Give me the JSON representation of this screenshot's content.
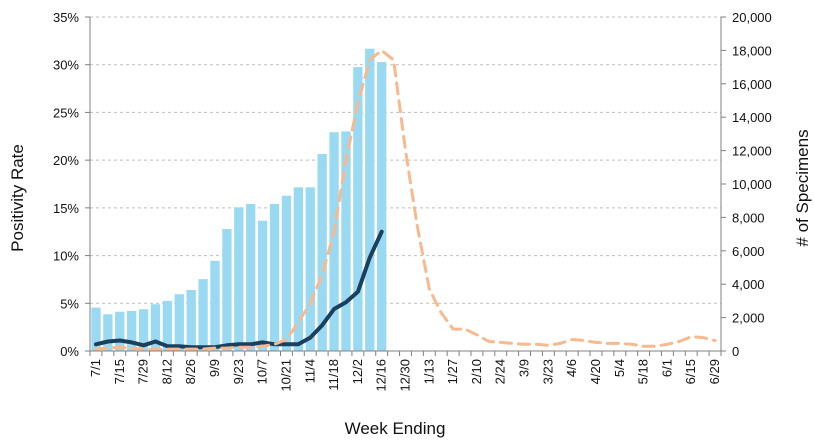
{
  "chart_data": {
    "type": "bar+line",
    "xlabel": "Week Ending",
    "ylabel_left": "Positivity Rate",
    "ylabel_right": "# of Specimens",
    "ylim_left": [
      0,
      35
    ],
    "ylim_right": [
      0,
      20000
    ],
    "yticks_left": [
      "0%",
      "5%",
      "10%",
      "15%",
      "20%",
      "25%",
      "30%",
      "35%"
    ],
    "yticks_right": [
      "0",
      "2,000",
      "4,000",
      "6,000",
      "8,000",
      "10,000",
      "12,000",
      "14,000",
      "16,000",
      "18,000",
      "20,000"
    ],
    "grid": "horizontal dashed",
    "colors": {
      "bars": "#99d9f2",
      "current_line": "#1b3f5e",
      "previous_line": "#f7b98d",
      "grid": "#bfbfbf",
      "axis": "#808080"
    },
    "weeks": [
      "7/1",
      "7/8",
      "7/15",
      "7/22",
      "7/29",
      "8/5",
      "8/12",
      "8/19",
      "8/26",
      "9/2",
      "9/9",
      "9/16",
      "9/23",
      "9/30",
      "10/7",
      "10/14",
      "10/21",
      "10/28",
      "11/4",
      "11/11",
      "11/18",
      "11/25",
      "12/2",
      "12/9",
      "12/16",
      "12/23",
      "12/30",
      "1/6",
      "1/13",
      "1/20",
      "1/27",
      "2/3",
      "2/10",
      "2/17",
      "2/24",
      "3/2",
      "3/9",
      "3/16",
      "3/23",
      "3/30",
      "4/6",
      "4/13",
      "4/20",
      "4/27",
      "5/4",
      "5/11",
      "5/18",
      "5/25",
      "6/1",
      "6/8",
      "6/15",
      "6/22",
      "6/29"
    ],
    "tick_labels": [
      "7/1",
      "7/15",
      "7/29",
      "8/12",
      "8/26",
      "9/9",
      "9/23",
      "10/7",
      "10/21",
      "11/4",
      "11/18",
      "12/2",
      "12/16",
      "12/30",
      "1/13",
      "1/27",
      "2/10",
      "2/24",
      "3/9",
      "3/23",
      "4/6",
      "4/20",
      "5/4",
      "5/18",
      "6/1",
      "6/15",
      "6/29"
    ],
    "series": [
      {
        "kind": "bar",
        "axis": "right",
        "values": [
          2600,
          2200,
          2350,
          2400,
          2500,
          2800,
          3000,
          3400,
          3650,
          4300,
          5400,
          7300,
          8600,
          8800,
          7800,
          8800,
          9300,
          9800,
          9800,
          11800,
          13100,
          13150,
          17000,
          18100,
          17300
        ]
      },
      {
        "kind": "line",
        "axis": "left",
        "style": "solid",
        "values": [
          0.7,
          1.0,
          1.1,
          0.9,
          0.6,
          1.0,
          0.5,
          0.5,
          0.4,
          0.4,
          0.4,
          0.6,
          0.7,
          0.7,
          0.9,
          0.7,
          0.7,
          0.7,
          1.4,
          2.7,
          4.4,
          5.1,
          6.2,
          9.8,
          12.5
        ]
      },
      {
        "kind": "line",
        "axis": "left",
        "style": "dashed",
        "values": [
          0.2,
          0.3,
          0.4,
          0.3,
          0.2,
          0.2,
          0.2,
          0.2,
          0.2,
          0.2,
          0.3,
          0.3,
          0.4,
          0.4,
          0.5,
          0.7,
          1.2,
          3.0,
          5.0,
          8.0,
          12.5,
          20.0,
          26.0,
          30.5,
          31.5,
          30.5,
          21.0,
          13.0,
          6.5,
          4.0,
          2.3,
          2.3,
          1.7,
          1.0,
          0.9,
          0.8,
          0.7,
          0.7,
          0.6,
          0.8,
          1.2,
          1.1,
          0.9,
          0.8,
          0.8,
          0.7,
          0.5,
          0.5,
          0.7,
          1.0,
          1.5,
          1.4,
          1.1
        ]
      }
    ]
  }
}
